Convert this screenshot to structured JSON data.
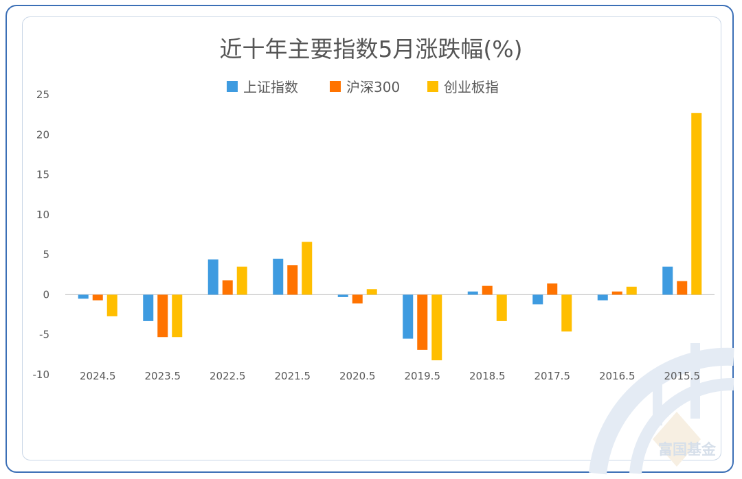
{
  "watermark": {
    "text": "富国基金"
  },
  "colors": {
    "frame": "#3b6fb6",
    "inner_border": "#c9d6e6",
    "axis": "#bfbfbf",
    "text": "#555555",
    "watermark": "#dde6f1"
  },
  "chart_data": {
    "type": "bar",
    "title": "近十年主要指数5月涨跌幅(%)",
    "categories": [
      "2024.5",
      "2023.5",
      "2022.5",
      "2021.5",
      "2020.5",
      "2019.5",
      "2018.5",
      "2017.5",
      "2016.5",
      "2015.5"
    ],
    "series": [
      {
        "name": "上证指数",
        "color": "#3e9be0",
        "values": [
          -0.5,
          -3.3,
          4.4,
          4.5,
          -0.3,
          -5.5,
          0.4,
          -1.2,
          -0.7,
          3.5
        ]
      },
      {
        "name": "沪深300",
        "color": "#ff7300",
        "values": [
          -0.7,
          -5.3,
          1.8,
          3.7,
          -1.1,
          -6.9,
          1.1,
          1.4,
          0.4,
          1.7
        ]
      },
      {
        "name": "创业板指",
        "color": "#ffbe00",
        "values": [
          -2.7,
          -5.3,
          3.5,
          6.6,
          0.7,
          -8.2,
          -3.3,
          -4.6,
          1.0,
          22.7
        ]
      }
    ],
    "yticks": [
      25,
      20,
      15,
      10,
      5,
      0,
      -5,
      -10
    ],
    "ylim": [
      -10,
      25
    ],
    "legend_position": "top-center",
    "grid": false
  }
}
